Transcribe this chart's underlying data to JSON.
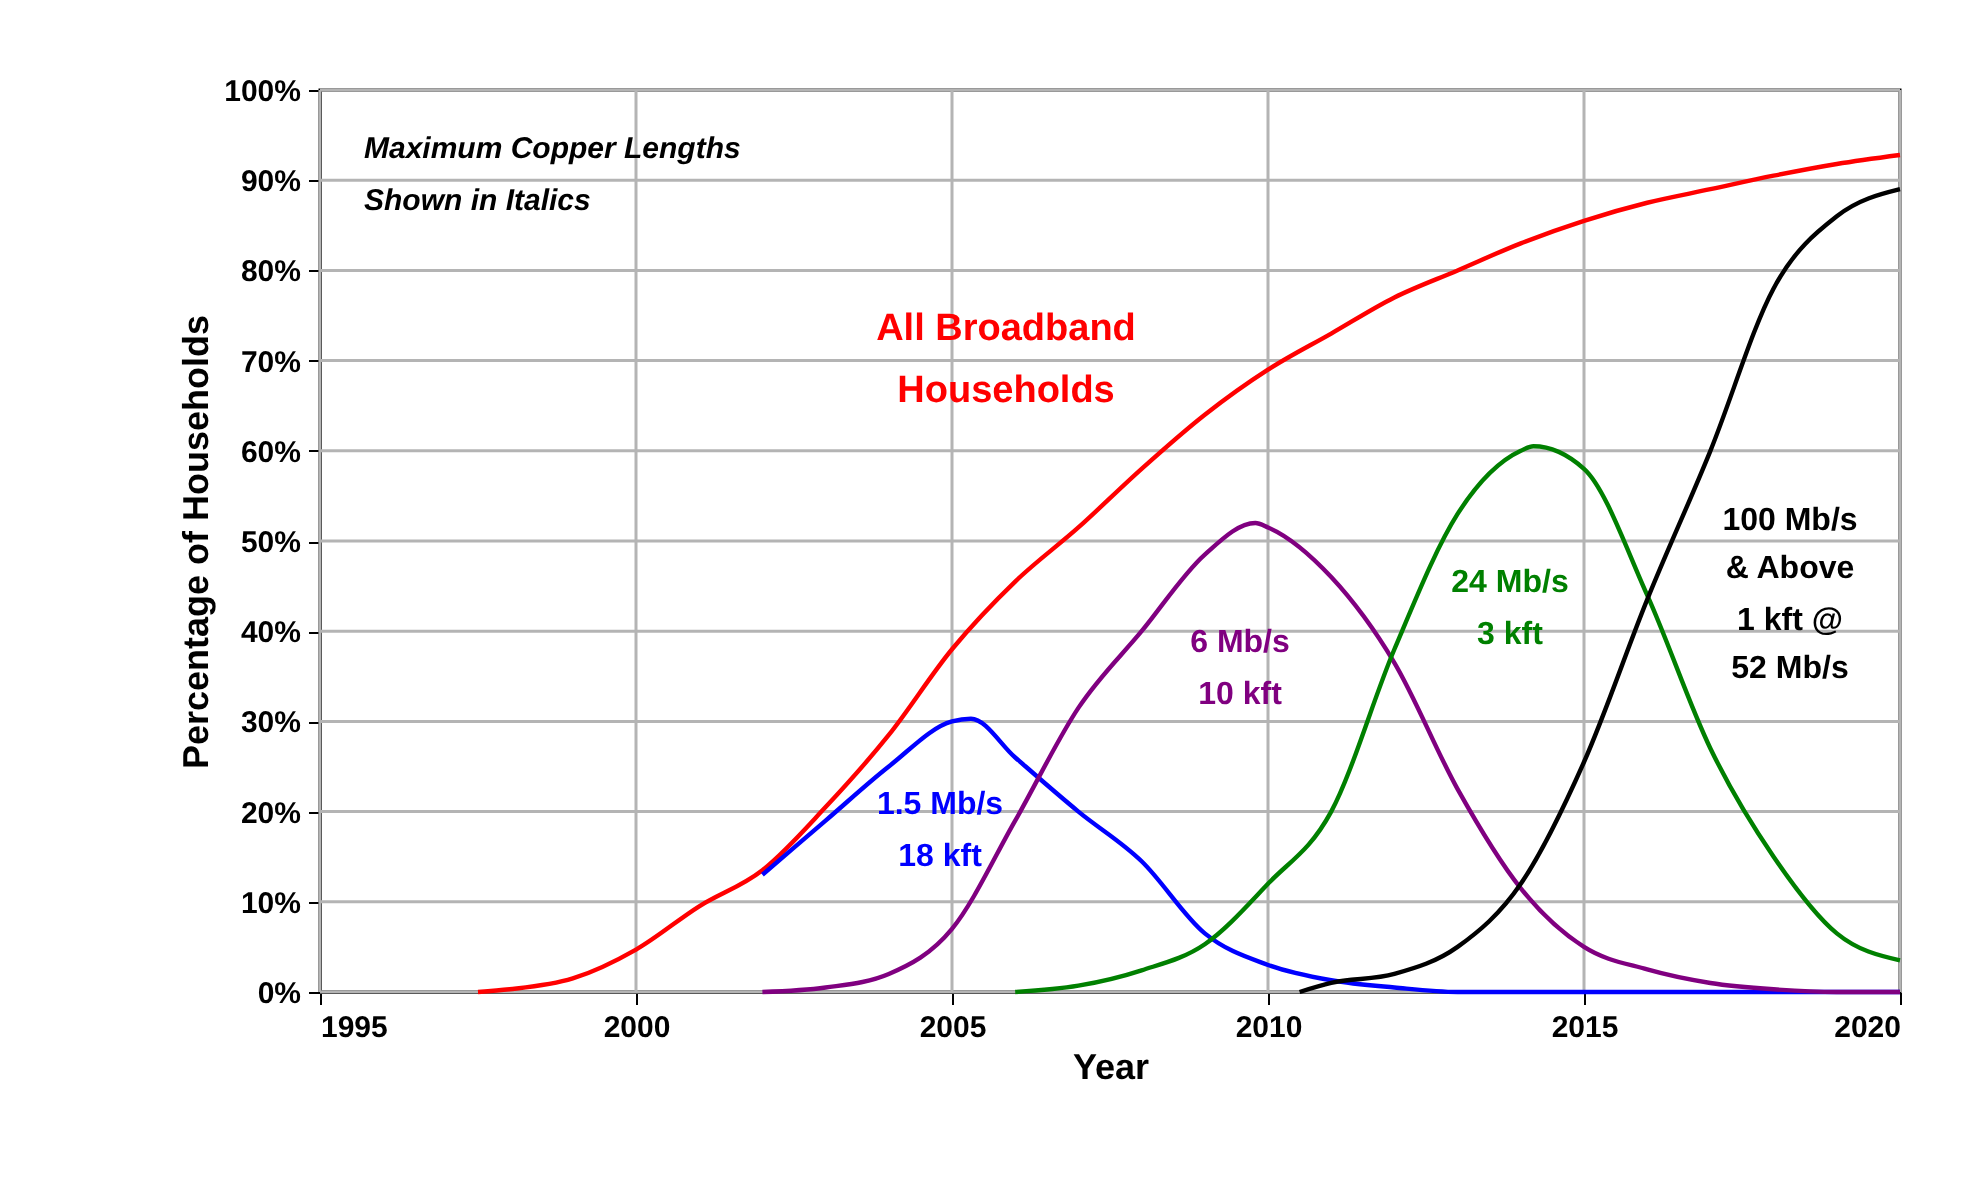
{
  "chart_data": {
    "type": "line",
    "xlabel": "Year",
    "ylabel": "Percentage of Households",
    "xlim": [
      1995,
      2020
    ],
    "xticks": [
      1995,
      2000,
      2005,
      2010,
      2015,
      2020
    ],
    "ylim": [
      0,
      100
    ],
    "yticks": [
      {
        "value": 0,
        "label": "0%"
      },
      {
        "value": 10,
        "label": "10%"
      },
      {
        "value": 20,
        "label": "20%"
      },
      {
        "value": 30,
        "label": "30%"
      },
      {
        "value": 40,
        "label": "40%"
      },
      {
        "value": 50,
        "label": "50%"
      },
      {
        "value": 60,
        "label": "60%"
      },
      {
        "value": 70,
        "label": "70%"
      },
      {
        "value": 80,
        "label": "80%"
      },
      {
        "value": 90,
        "label": "90%"
      },
      {
        "value": 100,
        "label": "100%"
      }
    ],
    "grid": true,
    "legend": false,
    "marker": "none",
    "line_style": "solid",
    "series": [
      {
        "name": "All Broadband Households",
        "color": "#ff0000",
        "x": [
          1997.5,
          1998,
          1999,
          2000,
          2001,
          2002,
          2003,
          2004,
          2005,
          2006,
          2007,
          2008,
          2009,
          2010,
          2011,
          2012,
          2013,
          2014,
          2015,
          2016,
          2017,
          2018,
          2019,
          2020
        ],
        "values": [
          0,
          0.3,
          1.5,
          4.7,
          9.5,
          13.5,
          20.5,
          28.5,
          38,
          45.5,
          51.5,
          58,
          64,
          69,
          73,
          77,
          80,
          83,
          85.5,
          87.5,
          89,
          90.5,
          91.8,
          92.8
        ]
      },
      {
        "name": "1.5 Mb/s",
        "color": "#0000ff",
        "x": [
          2002,
          2003,
          2004,
          2005,
          2005.3,
          2006,
          2007,
          2008,
          2009,
          2010,
          2011,
          2012,
          2013,
          2020
        ],
        "values": [
          13,
          19,
          25,
          30,
          30.3,
          26,
          20,
          14.5,
          6.5,
          3,
          1.3,
          0.5,
          0,
          0
        ]
      },
      {
        "name": "6 Mb/s",
        "color": "#800080",
        "x": [
          2002,
          2003,
          2004,
          2005,
          2006,
          2007,
          2008,
          2009,
          2009.8,
          2010,
          2011,
          2012,
          2013,
          2014,
          2015,
          2016,
          2017,
          2018,
          2019,
          2020
        ],
        "values": [
          0,
          0.5,
          2,
          7,
          19,
          31.5,
          40,
          48.5,
          52,
          51.5,
          46,
          36.5,
          22.5,
          11.5,
          5,
          2.5,
          1,
          0.3,
          0,
          0
        ]
      },
      {
        "name": "24 Mb/s",
        "color": "#008000",
        "x": [
          2006,
          2007,
          2008,
          2009,
          2010,
          2011,
          2012,
          2013,
          2014,
          2014.2,
          2015,
          2016,
          2017,
          2018,
          2019,
          2020
        ],
        "values": [
          0,
          0.7,
          2.4,
          5.3,
          12,
          20,
          38,
          53,
          60,
          60.5,
          58,
          44,
          27,
          15,
          6.5,
          3.5
        ]
      },
      {
        "name": "100 Mb/s & Above",
        "color": "#000000",
        "x": [
          2010.5,
          2011,
          2012,
          2013,
          2014,
          2015,
          2016,
          2017,
          2018,
          2019,
          2020
        ],
        "values": [
          0,
          1,
          2,
          5,
          12,
          25.5,
          43.5,
          60,
          78,
          86,
          89
        ]
      }
    ],
    "annotations": [
      "Maximum Copper Lengths Shown in Italics",
      "18 kft",
      "10 kft",
      "3 kft",
      "1 kft @ 52 Mb/s"
    ]
  }
}
